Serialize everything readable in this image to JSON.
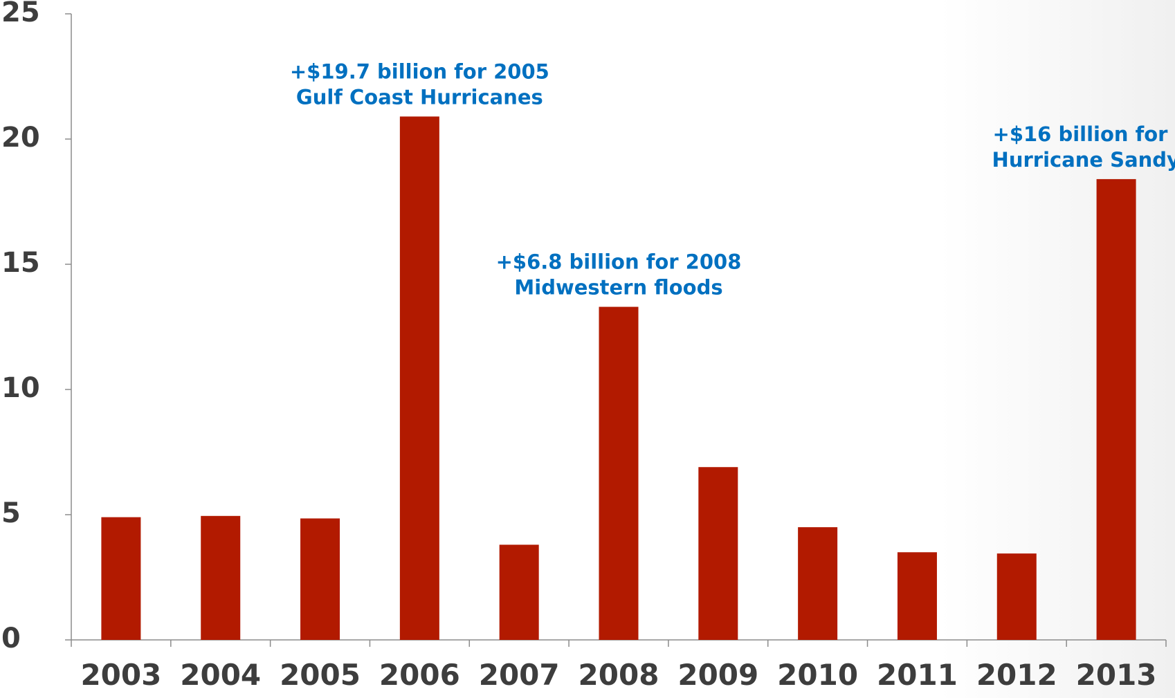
{
  "chart_data": {
    "type": "bar",
    "categories": [
      "2003",
      "2004",
      "2005",
      "2006",
      "2007",
      "2008",
      "2009",
      "2010",
      "2011",
      "2012",
      "2013"
    ],
    "values": [
      4.9,
      4.95,
      4.85,
      20.9,
      3.8,
      13.3,
      6.9,
      4.5,
      3.5,
      3.45,
      18.4
    ],
    "ylim": [
      0,
      25
    ],
    "yticks": [
      "0",
      "5",
      "10",
      "15",
      "20",
      "25"
    ],
    "title": "",
    "xlabel": "",
    "ylabel": "",
    "grid": false,
    "bar_color": "#b21a00",
    "annotation_color": "#0070c0",
    "annotations": [
      {
        "category": "2006",
        "lines": [
          "+$19.7 billion for 2005",
          "Gulf Coast Hurricanes"
        ]
      },
      {
        "category": "2008",
        "lines": [
          "+$6.8 billion for 2008",
          "Midwestern floods"
        ]
      },
      {
        "category": "2013",
        "lines": [
          "+$16 billion for",
          "Hurricane Sandy"
        ]
      }
    ]
  }
}
